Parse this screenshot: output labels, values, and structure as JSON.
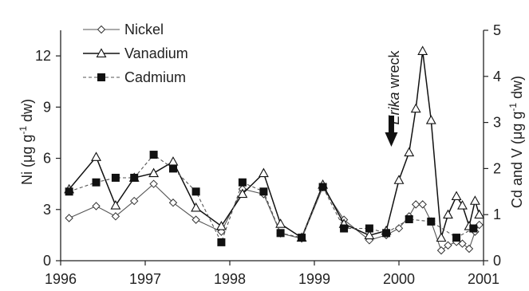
{
  "chart_data": {
    "type": "line",
    "x_axis": {
      "min": 1996,
      "max": 2001,
      "ticks": [
        1996,
        1997,
        1998,
        1999,
        2000,
        2001
      ]
    },
    "y_left": {
      "label_prefix": "Ni (μg g",
      "label_sup": "-1",
      "label_suffix": " dw)",
      "min": 0,
      "max": 13.5,
      "ticks": [
        0,
        3,
        6,
        9,
        12
      ]
    },
    "y_right": {
      "label_prefix": "Cd and V (μg g",
      "label_sup": "-1",
      "label_suffix": " dw)",
      "min": 0,
      "max": 5.0,
      "ticks": [
        0,
        1,
        2,
        3,
        4,
        5
      ]
    },
    "annotation": {
      "italic": "Erika",
      "rest": " wreck",
      "x": 1999.91
    },
    "legend_position": "top-left",
    "series": [
      {
        "name": "Nickel",
        "axis": "left",
        "marker": "diamond",
        "line": "solid",
        "x": [
          1996.1,
          1996.42,
          1996.65,
          1996.87,
          1997.1,
          1997.33,
          1997.6,
          1997.9,
          1998.15,
          1998.4,
          1998.6,
          1998.85,
          1999.1,
          1999.35,
          1999.65,
          1999.85,
          2000.0,
          2000.12,
          2000.2,
          2000.28,
          2000.38,
          2000.5,
          2000.58,
          2000.68,
          2000.75,
          2000.83,
          2000.9,
          2000.95
        ],
        "values": [
          2.5,
          3.2,
          2.6,
          3.5,
          4.5,
          3.4,
          2.4,
          1.7,
          4.2,
          3.9,
          1.6,
          1.3,
          4.3,
          2.4,
          1.2,
          1.5,
          1.9,
          2.6,
          3.3,
          3.3,
          2.3,
          0.6,
          0.9,
          1.1,
          1.0,
          0.7,
          1.7,
          2.1
        ]
      },
      {
        "name": "Vanadium",
        "axis": "right",
        "marker": "triangle",
        "line": "solid",
        "x": [
          1996.1,
          1996.42,
          1996.65,
          1996.87,
          1997.1,
          1997.33,
          1997.6,
          1997.9,
          1998.15,
          1998.4,
          1998.6,
          1998.85,
          1999.1,
          1999.35,
          1999.65,
          1999.85,
          2000.0,
          2000.12,
          2000.2,
          2000.28,
          2000.38,
          2000.5,
          2000.58,
          2000.68,
          2000.75,
          2000.83,
          2000.9,
          2000.95
        ],
        "values": [
          1.55,
          2.25,
          1.2,
          1.8,
          1.9,
          2.15,
          1.15,
          0.75,
          1.45,
          1.9,
          0.8,
          0.5,
          1.65,
          0.8,
          0.55,
          0.65,
          1.75,
          2.35,
          3.3,
          4.55,
          3.05,
          0.5,
          1.0,
          1.4,
          1.2,
          0.75,
          1.3,
          1.0
        ]
      },
      {
        "name": "Cadmium",
        "axis": "right",
        "marker": "square",
        "line": "dashed",
        "x": [
          1996.1,
          1996.42,
          1996.65,
          1996.87,
          1997.1,
          1997.33,
          1997.6,
          1997.9,
          1998.15,
          1998.4,
          1998.6,
          1998.85,
          1999.1,
          1999.35,
          1999.65,
          1999.85,
          2000.12,
          2000.38,
          2000.68,
          2000.88
        ],
        "values": [
          1.5,
          1.7,
          1.8,
          1.8,
          2.3,
          2.0,
          1.5,
          0.4,
          1.7,
          1.5,
          0.6,
          0.5,
          1.6,
          0.7,
          0.7,
          0.6,
          0.9,
          0.85,
          0.5,
          0.7
        ]
      }
    ]
  }
}
